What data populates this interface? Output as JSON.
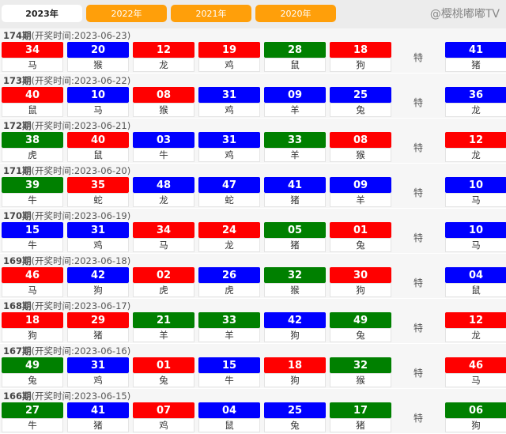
{
  "tabs": [
    {
      "label": "2023年",
      "active": true
    },
    {
      "label": "2022年"
    },
    {
      "label": "2021年"
    },
    {
      "label": "2020年"
    }
  ],
  "colors": {
    "red": "#ff0000",
    "blue": "#0000ff",
    "green": "#008000"
  },
  "special_label": "特",
  "draws": [
    {
      "issue": "174期",
      "time": "(开奖时间:2023-06-23)",
      "balls": [
        [
          "34",
          "red",
          "马"
        ],
        [
          "20",
          "blue",
          "猴"
        ],
        [
          "12",
          "red",
          "龙"
        ],
        [
          "19",
          "red",
          "鸡"
        ],
        [
          "28",
          "green",
          "鼠"
        ],
        [
          "18",
          "red",
          "狗"
        ]
      ],
      "special": [
        "41",
        "blue",
        "猪"
      ]
    },
    {
      "issue": "173期",
      "time": "(开奖时间:2023-06-22)",
      "balls": [
        [
          "40",
          "red",
          "鼠"
        ],
        [
          "10",
          "blue",
          "马"
        ],
        [
          "08",
          "red",
          "猴"
        ],
        [
          "31",
          "blue",
          "鸡"
        ],
        [
          "09",
          "blue",
          "羊"
        ],
        [
          "25",
          "blue",
          "兔"
        ]
      ],
      "special": [
        "36",
        "blue",
        "龙"
      ]
    },
    {
      "issue": "172期",
      "time": "(开奖时间:2023-06-21)",
      "balls": [
        [
          "38",
          "green",
          "虎"
        ],
        [
          "40",
          "red",
          "鼠"
        ],
        [
          "03",
          "blue",
          "牛"
        ],
        [
          "31",
          "blue",
          "鸡"
        ],
        [
          "33",
          "green",
          "羊"
        ],
        [
          "08",
          "red",
          "猴"
        ]
      ],
      "special": [
        "12",
        "red",
        "龙"
      ]
    },
    {
      "issue": "171期",
      "time": "(开奖时间:2023-06-20)",
      "balls": [
        [
          "39",
          "green",
          "牛"
        ],
        [
          "35",
          "red",
          "蛇"
        ],
        [
          "48",
          "blue",
          "龙"
        ],
        [
          "47",
          "blue",
          "蛇"
        ],
        [
          "41",
          "blue",
          "猪"
        ],
        [
          "09",
          "blue",
          "羊"
        ]
      ],
      "special": [
        "10",
        "blue",
        "马"
      ]
    },
    {
      "issue": "170期",
      "time": "(开奖时间:2023-06-19)",
      "balls": [
        [
          "15",
          "blue",
          "牛"
        ],
        [
          "31",
          "blue",
          "鸡"
        ],
        [
          "34",
          "red",
          "马"
        ],
        [
          "24",
          "red",
          "龙"
        ],
        [
          "05",
          "green",
          "猪"
        ],
        [
          "01",
          "red",
          "兔"
        ]
      ],
      "special": [
        "10",
        "blue",
        "马"
      ]
    },
    {
      "issue": "169期",
      "time": "(开奖时间:2023-06-18)",
      "balls": [
        [
          "46",
          "red",
          "马"
        ],
        [
          "42",
          "blue",
          "狗"
        ],
        [
          "02",
          "red",
          "虎"
        ],
        [
          "26",
          "blue",
          "虎"
        ],
        [
          "32",
          "green",
          "猴"
        ],
        [
          "30",
          "red",
          "狗"
        ]
      ],
      "special": [
        "04",
        "blue",
        "鼠"
      ]
    },
    {
      "issue": "168期",
      "time": "(开奖时间:2023-06-17)",
      "balls": [
        [
          "18",
          "red",
          "狗"
        ],
        [
          "29",
          "red",
          "猪"
        ],
        [
          "21",
          "green",
          "羊"
        ],
        [
          "33",
          "green",
          "羊"
        ],
        [
          "42",
          "blue",
          "狗"
        ],
        [
          "49",
          "green",
          "兔"
        ]
      ],
      "special": [
        "12",
        "red",
        "龙"
      ]
    },
    {
      "issue": "167期",
      "time": "(开奖时间:2023-06-16)",
      "balls": [
        [
          "49",
          "green",
          "兔"
        ],
        [
          "31",
          "blue",
          "鸡"
        ],
        [
          "01",
          "red",
          "兔"
        ],
        [
          "15",
          "blue",
          "牛"
        ],
        [
          "18",
          "red",
          "狗"
        ],
        [
          "32",
          "green",
          "猴"
        ]
      ],
      "special": [
        "46",
        "red",
        "马"
      ]
    },
    {
      "issue": "166期",
      "time": "(开奖时间:2023-06-15)",
      "balls": [
        [
          "27",
          "green",
          "牛"
        ],
        [
          "41",
          "blue",
          "猪"
        ],
        [
          "07",
          "red",
          "鸡"
        ],
        [
          "04",
          "blue",
          "鼠"
        ],
        [
          "25",
          "blue",
          "兔"
        ],
        [
          "17",
          "green",
          "猪"
        ]
      ],
      "special": [
        "06",
        "green",
        "狗"
      ]
    }
  ],
  "watermark": "@樱桃嘟嘟TV"
}
